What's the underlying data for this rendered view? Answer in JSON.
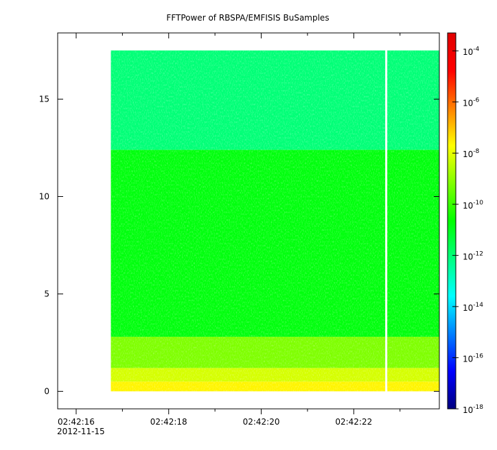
{
  "chart_data": {
    "type": "heatmap",
    "title": "FFTPower of RBSPA/EMFISIS  BuSamples",
    "x_axis": {
      "ticks": [
        {
          "seconds": 16,
          "label": "02:42:16",
          "sublabel": "2012-11-15"
        },
        {
          "seconds": 18,
          "label": "02:42:18",
          "sublabel": ""
        },
        {
          "seconds": 20,
          "label": "02:42:20",
          "sublabel": ""
        },
        {
          "seconds": 22,
          "label": "02:42:22",
          "sublabel": ""
        }
      ],
      "minor_ticks": [
        17,
        19,
        21,
        23
      ],
      "range_seconds": [
        15.6,
        23.85
      ]
    },
    "y_axis": {
      "ticks": [
        0,
        5,
        10,
        15
      ],
      "tick_labels": [
        "0",
        "5",
        "10",
        "15"
      ],
      "range": [
        -0.9,
        18.4
      ]
    },
    "data": {
      "x_start_seconds": 16.75,
      "x_end_seconds": 23.85,
      "y_start": 0,
      "y_end": 17.5,
      "gap_seconds": [
        22.68,
        22.72
      ],
      "bands": [
        {
          "y_from": 0.0,
          "y_to": 0.5,
          "log_power": -7.6
        },
        {
          "y_from": 0.5,
          "y_to": 1.2,
          "log_power": -8.2
        },
        {
          "y_from": 1.2,
          "y_to": 2.8,
          "log_power": -9.2
        },
        {
          "y_from": 2.8,
          "y_to": 12.4,
          "log_power": -10.8
        },
        {
          "y_from": 12.4,
          "y_to": 17.5,
          "log_power": -12.0
        }
      ]
    },
    "colorbar": {
      "scale": "log",
      "range_exp": [
        -18,
        -3.3
      ],
      "tick_exponents": [
        -4,
        -6,
        -8,
        -10,
        -12,
        -14,
        -16,
        -18
      ],
      "base": "10",
      "colors": [
        "#00007f",
        "#0000ff",
        "#0080ff",
        "#00ffff",
        "#00ff80",
        "#00ff00",
        "#80ff00",
        "#ffff00",
        "#ff8000",
        "#ff0000",
        "#e00000"
      ]
    },
    "grid": false
  }
}
